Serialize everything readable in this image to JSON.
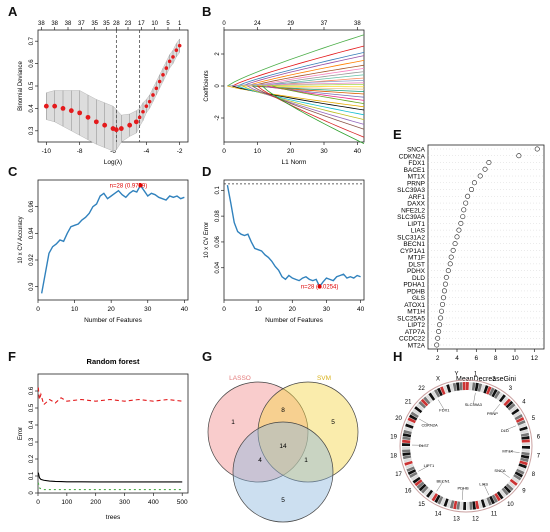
{
  "panels": {
    "A": "A",
    "B": "B",
    "C": "C",
    "D": "D",
    "E": "E",
    "F": "F",
    "G": "G",
    "H": "H"
  },
  "chart_data": [
    {
      "id": "A",
      "type": "scatter",
      "xlabel": "Log(λ)",
      "ylabel": "Binomial Deviance",
      "xlim": [
        -10.5,
        -1.5
      ],
      "ylim": [
        0.25,
        0.75
      ],
      "x_ticks": [
        -10,
        -8,
        -6,
        -4,
        -2
      ],
      "y_ticks": [
        0.3,
        0.4,
        0.5,
        0.6,
        0.7
      ],
      "top_ticks": [
        "38",
        "38",
        "38",
        "37",
        "35",
        "35",
        "28",
        "23",
        "17",
        "10",
        "5",
        "1"
      ],
      "top_tick_x": [
        -10.3,
        -9.5,
        -8.7,
        -7.9,
        -7.1,
        -6.4,
        -5.8,
        -5.1,
        -4.3,
        -3.5,
        -2.7,
        -2.0
      ],
      "vlines": [
        -5.8,
        -4.4
      ],
      "x": [
        -10,
        -9.5,
        -9,
        -8.5,
        -8,
        -7.5,
        -7,
        -6.5,
        -6,
        -5.8,
        -5.5,
        -5,
        -4.6,
        -4.4,
        -4.2,
        -4,
        -3.8,
        -3.6,
        -3.4,
        -3.2,
        -3,
        -2.8,
        -2.6,
        -2.4,
        -2.2,
        -2
      ],
      "y": [
        0.41,
        0.41,
        0.4,
        0.39,
        0.38,
        0.36,
        0.34,
        0.325,
        0.31,
        0.305,
        0.31,
        0.325,
        0.34,
        0.36,
        0.385,
        0.41,
        0.43,
        0.46,
        0.49,
        0.52,
        0.55,
        0.58,
        0.61,
        0.63,
        0.66,
        0.68
      ],
      "err": [
        0.06,
        0.07,
        0.08,
        0.09,
        0.1,
        0.1,
        0.1,
        0.1,
        0.1,
        0.09,
        0.06,
        0.05,
        0.05,
        0.04,
        0.04,
        0.03,
        0.03,
        0.03,
        0.03,
        0.03,
        0.03,
        0.03,
        0.03,
        0.03,
        0.03,
        0.03
      ],
      "color": "#e41a1c"
    },
    {
      "id": "B",
      "type": "line",
      "xlabel": "L1 Norm",
      "ylabel": "Coefficients",
      "xlim": [
        0,
        42
      ],
      "ylim": [
        -3.5,
        3.5
      ],
      "x_ticks": [
        0,
        10,
        20,
        30,
        40
      ],
      "y_ticks": [
        -2,
        0,
        2
      ],
      "top_ticks": [
        "0",
        "24",
        "29",
        "37",
        "38"
      ],
      "top_tick_x": [
        0,
        10,
        20,
        30,
        40
      ],
      "final_values": [
        3.2,
        2.5,
        2.1,
        1.9,
        1.6,
        1.3,
        1.1,
        0.9,
        0.7,
        0.5,
        0.35,
        0.2,
        0.1,
        -0.05,
        -0.2,
        -0.35,
        -0.5,
        -0.7,
        -0.9,
        -1.1,
        -1.3,
        -1.5,
        -1.8,
        -2.1,
        -2.4,
        -2.7,
        -3.2,
        -3.6
      ],
      "colors": [
        "#4daf4a",
        "#e41a1c",
        "#377eb8",
        "#984ea3",
        "#ff7f00",
        "#a65628",
        "#f781bf",
        "#999999",
        "#66c2a5",
        "#fc8d62",
        "#8da0cb",
        "#e78ac3",
        "#a6d854",
        "#ffd92f",
        "#e5c494",
        "#1b9e77",
        "#d95f02",
        "#7570b3",
        "#e7298a",
        "#66a61e",
        "#e6ab02",
        "#000000",
        "#17becf",
        "#bcbd22",
        "#9467bd",
        "#8c564b",
        "#d62728",
        "#2ca02c"
      ]
    },
    {
      "id": "C",
      "type": "line",
      "xlabel": "Number of Features",
      "ylabel": "10 x CV Accuracy",
      "xlim": [
        0,
        41
      ],
      "ylim": [
        0.89,
        0.98
      ],
      "x_ticks": [
        0,
        10,
        20,
        30,
        40
      ],
      "y_ticks": [
        0.9,
        0.92,
        0.94,
        0.96
      ],
      "annotation": "n=28 (0.9759)",
      "annotation_x": 28,
      "annotation_y": 0.976,
      "x": [
        1,
        2,
        3,
        4,
        5,
        6,
        7,
        8,
        9,
        10,
        11,
        12,
        13,
        14,
        15,
        16,
        17,
        18,
        19,
        20,
        21,
        22,
        23,
        24,
        25,
        26,
        27,
        28,
        29,
        30,
        31,
        32,
        33,
        34,
        35,
        36,
        37,
        38,
        39,
        40
      ],
      "y": [
        0.895,
        0.91,
        0.925,
        0.93,
        0.932,
        0.935,
        0.934,
        0.94,
        0.945,
        0.946,
        0.947,
        0.95,
        0.952,
        0.955,
        0.96,
        0.962,
        0.968,
        0.97,
        0.966,
        0.968,
        0.97,
        0.972,
        0.969,
        0.967,
        0.97,
        0.972,
        0.971,
        0.9759,
        0.972,
        0.968,
        0.97,
        0.969,
        0.967,
        0.966,
        0.965,
        0.968,
        0.967,
        0.968,
        0.966,
        0.967
      ],
      "color": "#3182bd"
    },
    {
      "id": "D",
      "type": "line",
      "xlabel": "Number of Features",
      "ylabel": "10 x CV Error",
      "xlim": [
        0,
        41
      ],
      "ylim": [
        0.015,
        0.108
      ],
      "x_ticks": [
        0,
        10,
        20,
        30,
        40
      ],
      "y_ticks": [
        0.04,
        0.06,
        0.08,
        0.1
      ],
      "hline": 0.105,
      "annotation": "n=28 (0.0254)",
      "annotation_x": 28,
      "annotation_y": 0.0254,
      "x": [
        1,
        2,
        3,
        4,
        5,
        6,
        7,
        8,
        9,
        10,
        11,
        12,
        13,
        14,
        15,
        16,
        17,
        18,
        19,
        20,
        21,
        22,
        23,
        24,
        25,
        26,
        27,
        28,
        29,
        30,
        31,
        32,
        33,
        34,
        35,
        36,
        37,
        38,
        39,
        40
      ],
      "y": [
        0.104,
        0.09,
        0.075,
        0.068,
        0.066,
        0.065,
        0.066,
        0.06,
        0.055,
        0.054,
        0.053,
        0.05,
        0.048,
        0.045,
        0.041,
        0.038,
        0.033,
        0.031,
        0.034,
        0.032,
        0.031,
        0.03,
        0.032,
        0.033,
        0.031,
        0.03,
        0.031,
        0.0254,
        0.029,
        0.032,
        0.031,
        0.03,
        0.033,
        0.034,
        0.035,
        0.032,
        0.033,
        0.032,
        0.034,
        0.033
      ],
      "color": "#3182bd"
    },
    {
      "id": "E",
      "type": "scatter",
      "xlabel": "MeanDecreaseGini",
      "xlim": [
        1,
        13
      ],
      "x_ticks": [
        2,
        4,
        6,
        8,
        10,
        12
      ],
      "labels": [
        "SNCA",
        "CDKN2A",
        "FDX1",
        "BACE1",
        "MT1X",
        "PRNP",
        "SLC39A3",
        "ARF1",
        "DAXX",
        "NFE2L2",
        "SLC39A5",
        "LIPT1",
        "LIAS",
        "SLC31A2",
        "BECN1",
        "CYP1A1",
        "MT1F",
        "DLST",
        "PDHX",
        "DLD",
        "PDHA1",
        "PDHB",
        "GLS",
        "ATOX1",
        "MT1H",
        "SLC25A5",
        "LIPT2",
        "ATP7A",
        "CCDC22",
        "MT2A"
      ],
      "values": [
        12.3,
        10.4,
        7.3,
        6.9,
        6.4,
        5.8,
        5.5,
        5.1,
        4.9,
        4.7,
        4.6,
        4.4,
        4.2,
        4.0,
        3.8,
        3.6,
        3.4,
        3.3,
        3.1,
        2.9,
        2.8,
        2.7,
        2.6,
        2.5,
        2.4,
        2.3,
        2.2,
        2.1,
        2.0,
        1.9
      ]
    },
    {
      "id": "F",
      "type": "line",
      "title": "Random forest",
      "xlabel": "trees",
      "ylabel": "Error",
      "xlim": [
        0,
        520
      ],
      "ylim": [
        0,
        0.7
      ],
      "x_ticks": [
        0,
        100,
        200,
        300,
        400,
        500
      ],
      "y_ticks": [
        0.0,
        0.1,
        0.2,
        0.3,
        0.4,
        0.5,
        0.6
      ],
      "series": [
        {
          "color": "#e31a1c",
          "dash": "4,3",
          "x": [
            1,
            5,
            10,
            20,
            40,
            60,
            80,
            100,
            150,
            200,
            250,
            300,
            350,
            400,
            450,
            500
          ],
          "y": [
            0.62,
            0.55,
            0.58,
            0.52,
            0.55,
            0.53,
            0.56,
            0.54,
            0.55,
            0.54,
            0.55,
            0.54,
            0.55,
            0.54,
            0.55,
            0.54
          ]
        },
        {
          "color": "#000000",
          "dash": "",
          "x": [
            1,
            5,
            10,
            20,
            40,
            60,
            80,
            100,
            150,
            200,
            250,
            300,
            350,
            400,
            450,
            500
          ],
          "y": [
            0.12,
            0.09,
            0.08,
            0.075,
            0.07,
            0.068,
            0.067,
            0.066,
            0.066,
            0.065,
            0.065,
            0.065,
            0.065,
            0.065,
            0.065,
            0.065
          ]
        },
        {
          "color": "#4daf4a",
          "dash": "2,3",
          "x": [
            1,
            5,
            10,
            20,
            40,
            60,
            80,
            100,
            150,
            200,
            250,
            300,
            350,
            400,
            450,
            500
          ],
          "y": [
            0.06,
            0.03,
            0.025,
            0.02,
            0.02,
            0.02,
            0.02,
            0.02,
            0.02,
            0.02,
            0.02,
            0.02,
            0.02,
            0.02,
            0.02,
            0.02
          ]
        }
      ]
    },
    {
      "id": "G",
      "type": "venn",
      "sets": [
        {
          "name": "LASSO",
          "color": "#f28e8e"
        },
        {
          "name": "SVM",
          "color": "#f5d547"
        },
        {
          "name": "",
          "color": "#8fb8de"
        }
      ],
      "regions": {
        "only_1": "1",
        "only_2": "5",
        "only_3": "5",
        "1_2": "8",
        "1_3": "4",
        "2_3": "1",
        "all": "14"
      }
    },
    {
      "id": "H",
      "type": "circos",
      "chromosomes": [
        "1",
        "2",
        "3",
        "4",
        "5",
        "6",
        "7",
        "8",
        "9",
        "10",
        "11",
        "12",
        "13",
        "14",
        "15",
        "16",
        "17",
        "18",
        "19",
        "20",
        "21",
        "22",
        "X",
        "Y"
      ],
      "genes": [
        "SLC39A3",
        "PRNP",
        "DLD",
        "MT1X",
        "SNCA",
        "LIAS",
        "PDHB",
        "BECN1",
        "LIPT1",
        "DLST",
        "CDKN2A",
        "FDX1"
      ]
    }
  ]
}
